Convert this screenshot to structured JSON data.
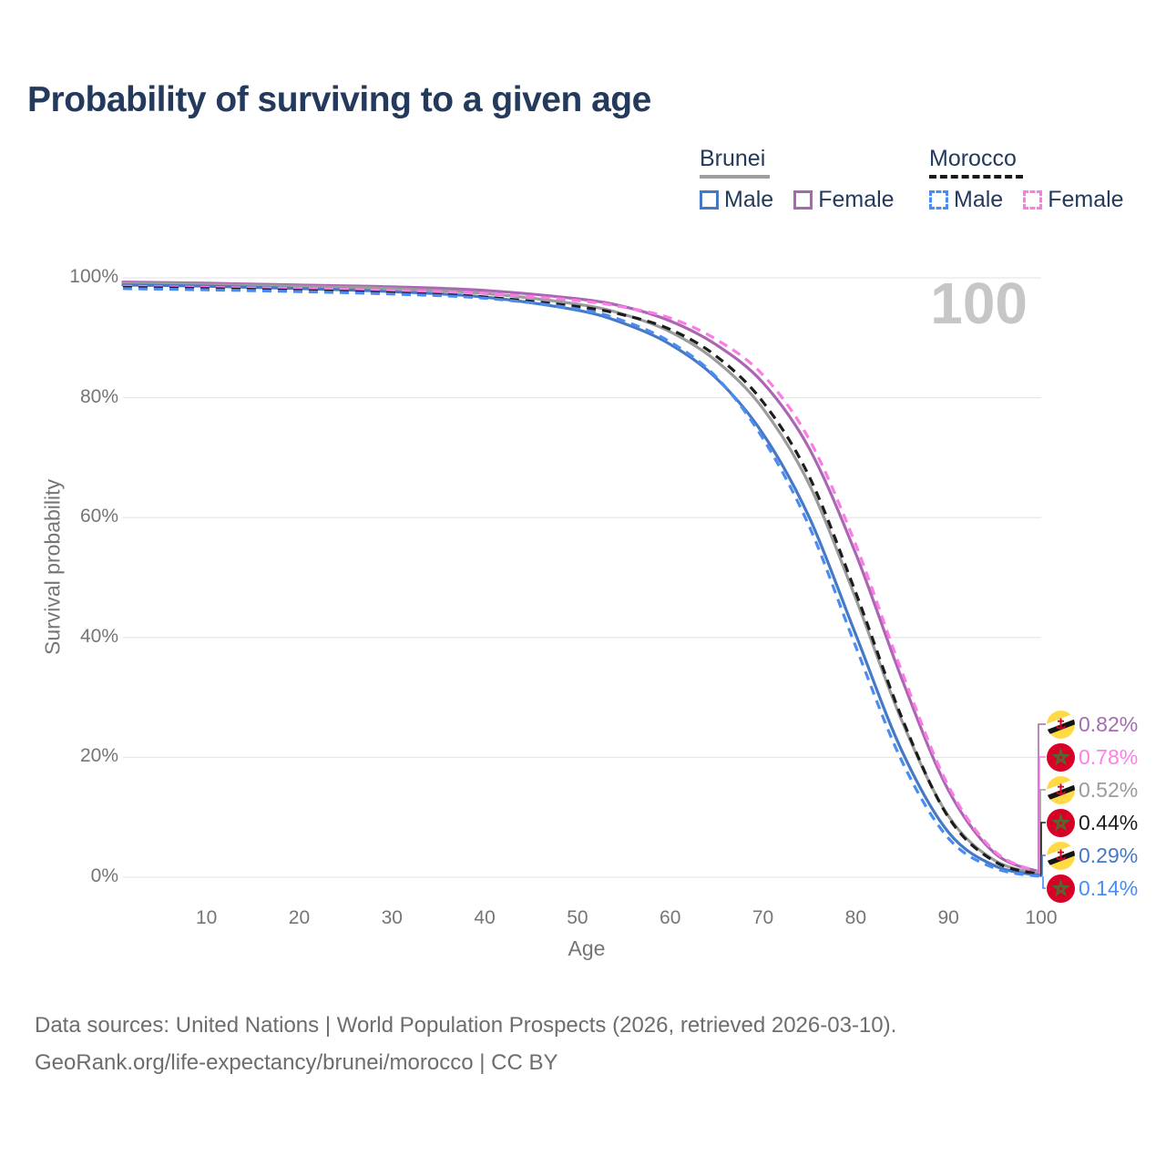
{
  "title": "Probability of surviving to a given age",
  "watermark": "100",
  "colors": {
    "title_text": "#233a5c",
    "axis_text": "#757575",
    "gridline": "#e8e8e8",
    "watermark": "#c6c6c6",
    "footer_text": "#6d6d6d",
    "brunei_underline": "#9e9e9e",
    "morocco_underline": "#1a1a1a"
  },
  "legend": {
    "groups": [
      {
        "country": "Brunei",
        "line_style": "solid",
        "underline_color": "#9e9e9e",
        "items": [
          {
            "label": "Male",
            "color": "#4579c6"
          },
          {
            "label": "Female",
            "color": "#aa66b3"
          }
        ]
      },
      {
        "country": "Morocco",
        "line_style": "dashed",
        "underline_color": "#1a1a1a",
        "items": [
          {
            "label": "Male",
            "color": "#4b8cf3"
          },
          {
            "label": "Female",
            "color": "#fb7ce4"
          }
        ]
      }
    ]
  },
  "chart_data": {
    "type": "line",
    "title": "Probability of surviving to a given age",
    "xlabel": "Age",
    "ylabel": "Survival probability",
    "xlim": [
      1,
      100
    ],
    "ylim": [
      0,
      100
    ],
    "grid": "horizontal",
    "legend_position": "top-right",
    "x_ticks": [
      10,
      20,
      30,
      40,
      50,
      60,
      70,
      80,
      90,
      100
    ],
    "y_ticks": [
      {
        "label": "0%",
        "value": 0
      },
      {
        "label": "20%",
        "value": 20
      },
      {
        "label": "40%",
        "value": 40
      },
      {
        "label": "60%",
        "value": 60
      },
      {
        "label": "80%",
        "value": 80
      },
      {
        "label": "100%",
        "value": 100
      }
    ],
    "x": [
      1,
      10,
      20,
      30,
      40,
      50,
      55,
      60,
      65,
      70,
      75,
      80,
      85,
      90,
      95,
      100
    ],
    "series": [
      {
        "name": "Brunei Female",
        "country": "Brunei",
        "sex": "Female",
        "color": "#aa66b3",
        "dash": "solid",
        "values": [
          99.3,
          99.1,
          98.8,
          98.5,
          97.9,
          96.5,
          95.2,
          92.8,
          88.8,
          82.5,
          71.5,
          54.0,
          33.0,
          14.5,
          4.0,
          0.82
        ]
      },
      {
        "name": "Brunei Total",
        "country": "Brunei",
        "sex": "Both",
        "color": "#9b9b9b",
        "dash": "solid",
        "values": [
          99.1,
          98.9,
          98.6,
          98.2,
          97.4,
          95.6,
          93.9,
          91.0,
          86.1,
          78.2,
          65.5,
          46.5,
          26.0,
          10.2,
          2.8,
          0.52
        ]
      },
      {
        "name": "Brunei Male",
        "country": "Brunei",
        "sex": "Male",
        "color": "#4579c6",
        "dash": "solid",
        "values": [
          98.8,
          98.6,
          98.2,
          97.7,
          96.8,
          94.6,
          92.4,
          88.9,
          83.2,
          74.0,
          60.0,
          40.5,
          21.0,
          7.5,
          1.9,
          0.29
        ]
      },
      {
        "name": "Morocco Female",
        "country": "Morocco",
        "sex": "Female",
        "color": "#fb7ce4",
        "dash": "dashed",
        "values": [
          98.6,
          98.4,
          98.2,
          97.9,
          97.4,
          96.2,
          95.1,
          93.3,
          89.7,
          83.8,
          73.0,
          55.5,
          34.2,
          15.2,
          4.3,
          0.78
        ]
      },
      {
        "name": "Morocco Total",
        "country": "Morocco",
        "sex": "Both",
        "color": "#1c1c1c",
        "dash": "dashed",
        "values": [
          98.4,
          98.2,
          97.9,
          97.5,
          96.8,
          95.2,
          93.8,
          91.4,
          86.9,
          79.3,
          66.8,
          47.5,
          26.5,
          10.0,
          2.6,
          0.44
        ]
      },
      {
        "name": "Morocco Male",
        "country": "Morocco",
        "sex": "Male",
        "color": "#4b8cf3",
        "dash": "dashed",
        "values": [
          98.2,
          98.0,
          97.7,
          97.3,
          96.6,
          94.8,
          92.8,
          89.3,
          83.4,
          73.2,
          58.5,
          38.5,
          19.3,
          6.5,
          1.5,
          0.14
        ]
      }
    ],
    "endpoint_labels": [
      {
        "series": "Brunei Female",
        "flag": "brunei",
        "text": "0.82%",
        "color": "#a46db2"
      },
      {
        "series": "Morocco Female",
        "flag": "morocco",
        "text": "0.78%",
        "color": "#fb80e8"
      },
      {
        "series": "Brunei Total",
        "flag": "brunei",
        "text": "0.52%",
        "color": "#9b9b9b"
      },
      {
        "series": "Morocco Total",
        "flag": "morocco",
        "text": "0.44%",
        "color": "#1c1c1c"
      },
      {
        "series": "Brunei Male",
        "flag": "brunei",
        "text": "0.29%",
        "color": "#4579c6"
      },
      {
        "series": "Morocco Male",
        "flag": "morocco",
        "text": "0.14%",
        "color": "#4b8cf3"
      }
    ]
  },
  "footer": {
    "line1": "Data sources: United Nations | World Population Prospects (2026, retrieved 2026-03-10).",
    "line2": "GeoRank.org/life-expectancy/brunei/morocco | CC BY"
  }
}
